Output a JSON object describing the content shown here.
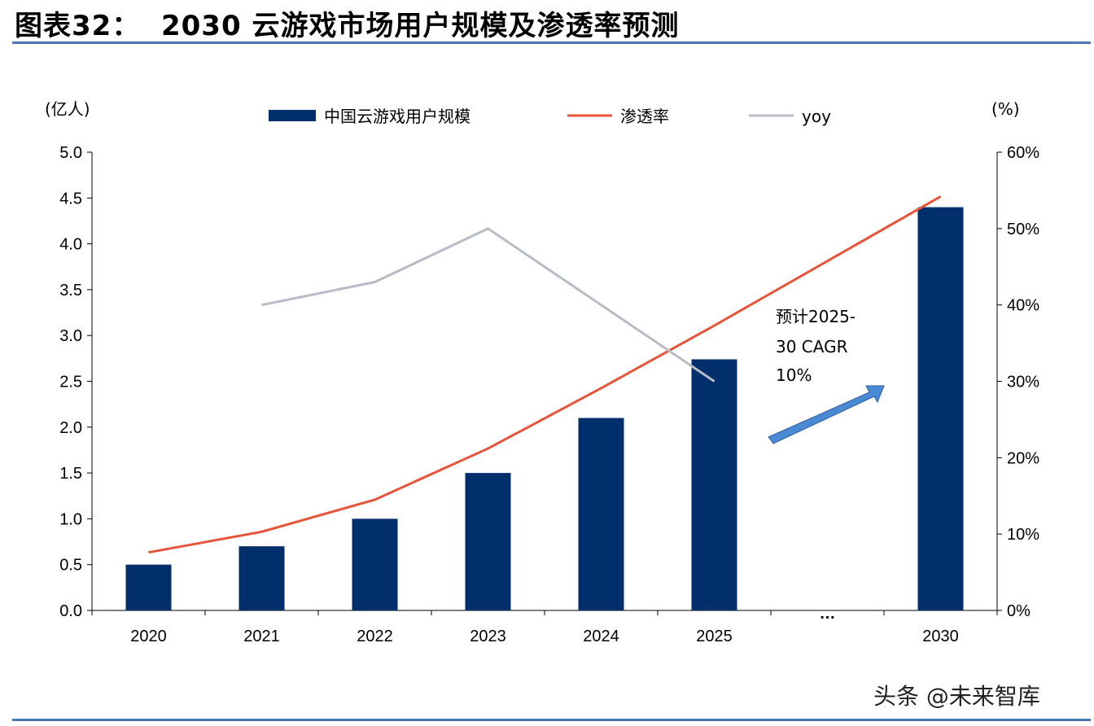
{
  "title": "图表32：  2030 云游戏市场用户规模及渗透率预测",
  "watermark": "头条 @未来智库",
  "chart_data": {
    "type": "bar+line",
    "categories": [
      "2020",
      "2021",
      "2022",
      "2023",
      "2024",
      "2025",
      "…",
      "2030"
    ],
    "left_axis": {
      "label": "(亿人)",
      "range": [
        0,
        5.0
      ],
      "ticks": [
        "0.0",
        "0.5",
        "1.0",
        "1.5",
        "2.0",
        "2.5",
        "3.0",
        "3.5",
        "4.0",
        "4.5",
        "5.0"
      ]
    },
    "right_axis": {
      "label": "(%)",
      "range": [
        0,
        60
      ],
      "ticks": [
        "0%",
        "10%",
        "20%",
        "30%",
        "40%",
        "50%",
        "60%"
      ]
    },
    "series": [
      {
        "name": "中国云游戏用户规模",
        "type": "bar",
        "axis": "left",
        "color": "#002f6c",
        "values": [
          0.5,
          0.7,
          1.0,
          1.5,
          2.1,
          2.74,
          null,
          4.4
        ]
      },
      {
        "name": "渗透率",
        "type": "line",
        "axis": "right",
        "color": "#e8543a",
        "values": [
          7.6,
          10.3,
          14.5,
          21.2,
          29.1,
          37.3,
          null,
          54.2
        ]
      },
      {
        "name": "yoy",
        "type": "line",
        "axis": "right",
        "color": "#b8bcc6",
        "values": [
          null,
          40.0,
          43.0,
          50.0,
          null,
          30.0,
          null,
          null
        ]
      }
    ],
    "annotation": {
      "line1": "预计2025-",
      "line2": "30 CAGR",
      "line3": "10%",
      "arrow_color": "#4a8ad4"
    },
    "legend": "top",
    "grid": false
  }
}
